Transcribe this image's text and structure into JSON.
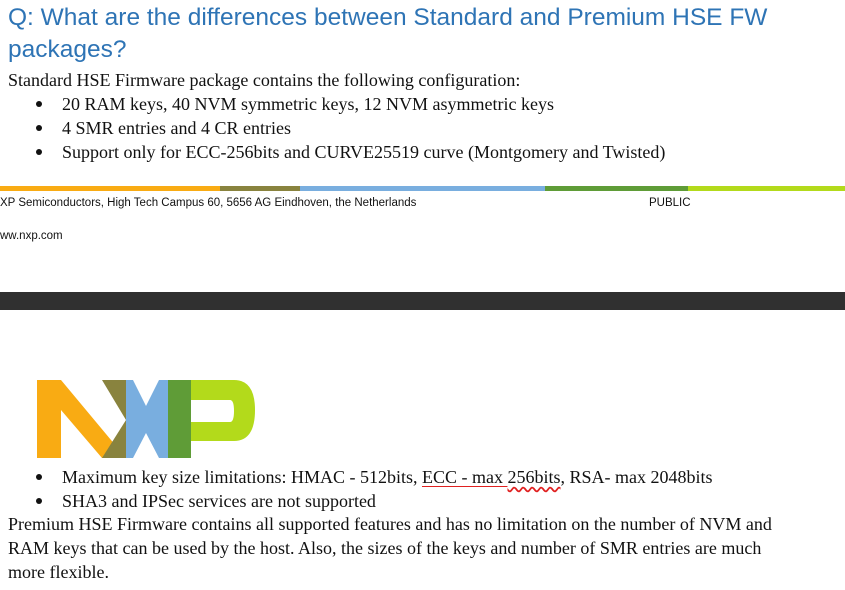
{
  "question": {
    "line1": "Q: What are the differences between Standard and Premium HSE FW",
    "line2": "packages?"
  },
  "standard_intro": "Standard HSE Firmware package contains the following configuration:",
  "standard_bullets_top": [
    "20 RAM keys, 40 NVM symmetric keys, 12 NVM asymmetric keys",
    "4 SMR entries and 4 CR entries",
    "Support only for ECC-256bits and CURVE25519 curve (Montgomery and Twisted)"
  ],
  "footer": {
    "address": "XP Semiconductors, High Tech Campus 60, 5656 AG Eindhoven, the Netherlands",
    "classification": "PUBLIC",
    "website": "ww.nxp.com"
  },
  "logo": {
    "text": "NXP"
  },
  "bullet_keysize": {
    "before": "Maximum key size limitations: HMAC - 512bits, ",
    "ecc_part1": "ECC - max ",
    "ecc_part2": "256bits",
    "after": ", RSA- max 2048bits"
  },
  "bullet_sha3": "SHA3 and IPSec services are not supported",
  "premium_lines": [
    "Premium HSE Firmware contains all supported features and has no limitation on the number of NVM and",
    "RAM keys that can be used by the host. Also, the sizes of the keys and number of SMR entries are much",
    "more flexible."
  ],
  "colors": {
    "title": "#2e74b5",
    "orange": "#f9ab13",
    "olive": "#89833e",
    "blue": "#79aedf",
    "green": "#5f9c37",
    "lime": "#b3da1b",
    "dark_bar": "#303030",
    "spell_underline": "#e02020"
  }
}
